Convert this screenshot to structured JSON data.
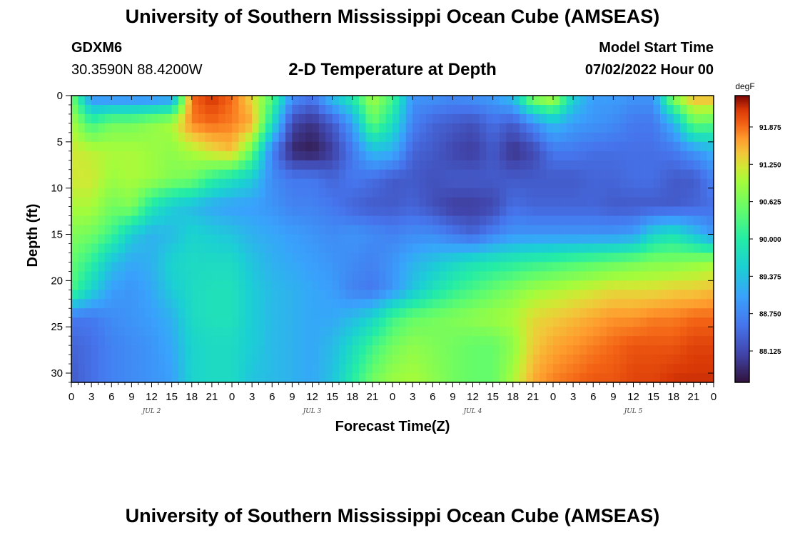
{
  "title": "University of Southern Mississippi Ocean Cube (AMSEAS)",
  "station": {
    "id": "GDXM6",
    "coords": "30.3590N  88.4200W"
  },
  "model_start": {
    "label": "Model Start Time",
    "value": "07/02/2022 Hour 00"
  },
  "plot_title": "2-D Temperature at Depth",
  "footer_title": "University of Southern Mississippi Ocean Cube (AMSEAS)",
  "colors": {
    "background": "#ffffff",
    "axis": "#000000"
  },
  "chart_data": {
    "type": "heatmap",
    "title": "2-D Temperature at Depth",
    "xlabel": "Forecast Time(Z)",
    "ylabel": "Depth (ft)",
    "units": "degF",
    "x_hours_range": [
      0,
      96
    ],
    "y_depth_range": [
      0,
      31
    ],
    "y_ticks": [
      0,
      5,
      10,
      15,
      20,
      25,
      30
    ],
    "x_tick_labels": [
      "0",
      "3",
      "6",
      "9",
      "12",
      "15",
      "18",
      "21",
      "0",
      "3",
      "6",
      "9",
      "12",
      "15",
      "18",
      "21",
      "0",
      "3",
      "6",
      "9",
      "12",
      "15",
      "18",
      "21",
      "0",
      "3",
      "6",
      "9",
      "12",
      "15",
      "18",
      "21",
      "0"
    ],
    "day_labels": [
      {
        "label": "JUL 2",
        "hour": 12
      },
      {
        "label": "JUL 3",
        "hour": 36
      },
      {
        "label": "JUL 4",
        "hour": 60
      },
      {
        "label": "JUL 5",
        "hour": 84
      }
    ],
    "colorbar": {
      "min": 87.6,
      "max": 92.4,
      "ticks": [
        "91.875",
        "91.250",
        "90.625",
        "90.000",
        "89.375",
        "88.750",
        "88.125"
      ],
      "tick_values": [
        91.875,
        91.25,
        90.625,
        90.0,
        89.375,
        88.75,
        88.125
      ]
    },
    "grid_hours": [
      0,
      3,
      6,
      9,
      12,
      15,
      18,
      21,
      24,
      27,
      30,
      33,
      36,
      39,
      42,
      45,
      48,
      51,
      54,
      57,
      60,
      63,
      66,
      69,
      72,
      75,
      78,
      81,
      84,
      87,
      90,
      93,
      96
    ],
    "grid_depths": [
      0,
      3,
      6,
      9,
      12,
      15,
      18,
      21,
      24,
      27,
      31
    ],
    "values_degF": [
      [
        90.6,
        88.8,
        88.7,
        88.7,
        88.7,
        88.8,
        91.9,
        92.2,
        91.9,
        91.3,
        90.4,
        88.9,
        88.6,
        89.4,
        90.0,
        91.0,
        90.3,
        88.9,
        88.9,
        88.8,
        88.9,
        89.0,
        89.4,
        90.9,
        91.2,
        89.6,
        89.0,
        89.0,
        88.9,
        88.9,
        90.9,
        91.6,
        91.6
      ],
      [
        91.0,
        90.2,
        90.6,
        90.6,
        90.8,
        91.0,
        91.8,
        91.9,
        91.8,
        91.6,
        89.8,
        88.1,
        87.9,
        88.3,
        89.0,
        90.5,
        89.8,
        88.7,
        88.4,
        88.3,
        88.2,
        88.5,
        88.3,
        88.8,
        89.3,
        89.0,
        88.9,
        88.8,
        88.6,
        88.6,
        89.2,
        90.5,
        90.4
      ],
      [
        91.2,
        91.1,
        91.0,
        91.0,
        90.9,
        90.8,
        91.0,
        91.3,
        91.5,
        90.5,
        88.7,
        87.8,
        87.7,
        88.0,
        88.6,
        89.3,
        89.2,
        88.4,
        88.3,
        88.1,
        88.0,
        88.3,
        87.9,
        88.1,
        88.6,
        88.6,
        88.5,
        88.5,
        88.5,
        88.5,
        88.6,
        88.9,
        89.2
      ],
      [
        91.2,
        91.2,
        90.9,
        91.0,
        90.9,
        90.7,
        90.6,
        90.1,
        89.8,
        89.5,
        88.8,
        88.6,
        88.6,
        88.4,
        88.6,
        88.5,
        88.3,
        88.3,
        88.2,
        88.3,
        88.3,
        88.3,
        88.3,
        88.3,
        88.3,
        88.3,
        88.4,
        88.4,
        88.5,
        88.5,
        88.3,
        88.3,
        88.7
      ],
      [
        91.0,
        91.0,
        90.6,
        90.7,
        89.9,
        89.5,
        89.3,
        89.1,
        89.0,
        89.0,
        88.9,
        88.7,
        88.7,
        88.6,
        88.4,
        88.3,
        88.3,
        88.4,
        88.2,
        88.0,
        88.0,
        88.1,
        88.5,
        88.4,
        88.4,
        88.4,
        88.4,
        88.3,
        88.3,
        88.3,
        88.3,
        88.4,
        88.5
      ],
      [
        90.7,
        90.6,
        90.2,
        89.5,
        89.2,
        89.3,
        89.6,
        89.5,
        89.4,
        89.2,
        89.1,
        89.0,
        88.9,
        88.8,
        88.9,
        88.8,
        88.7,
        88.8,
        88.8,
        88.6,
        88.4,
        88.7,
        88.9,
        88.9,
        88.9,
        88.9,
        88.9,
        88.9,
        89.0,
        89.6,
        89.8,
        89.4,
        88.9
      ],
      [
        90.5,
        90.1,
        89.4,
        89.1,
        89.2,
        89.6,
        89.7,
        89.7,
        89.7,
        89.4,
        89.2,
        89.1,
        89.0,
        88.9,
        88.8,
        88.7,
        88.9,
        89.2,
        89.4,
        89.6,
        89.8,
        89.9,
        90.0,
        90.1,
        90.2,
        90.3,
        90.4,
        90.5,
        90.6,
        90.7,
        90.7,
        90.8,
        90.9
      ],
      [
        90.3,
        89.6,
        89.0,
        88.9,
        89.1,
        89.5,
        89.7,
        89.8,
        89.8,
        89.5,
        89.3,
        89.2,
        89.1,
        89.0,
        88.7,
        88.6,
        88.9,
        89.4,
        89.8,
        90.1,
        90.3,
        90.5,
        90.7,
        90.9,
        91.0,
        91.1,
        91.2,
        91.3,
        91.3,
        91.3,
        91.4,
        91.4,
        91.5
      ],
      [
        88.6,
        88.6,
        88.8,
        88.9,
        89.0,
        89.2,
        89.7,
        89.8,
        89.8,
        89.5,
        89.3,
        89.2,
        89.1,
        89.1,
        89.3,
        89.6,
        90.2,
        90.5,
        90.6,
        90.7,
        90.8,
        90.9,
        91.0,
        91.3,
        91.4,
        91.5,
        91.6,
        91.7,
        91.7,
        91.8,
        91.8,
        91.9,
        91.9
      ],
      [
        88.4,
        88.5,
        88.7,
        88.8,
        88.9,
        89.1,
        89.6,
        89.7,
        89.7,
        89.5,
        89.3,
        89.2,
        89.1,
        89.3,
        89.7,
        90.2,
        90.6,
        90.8,
        90.7,
        90.6,
        90.5,
        90.5,
        90.8,
        91.4,
        91.6,
        91.7,
        91.8,
        91.9,
        92.0,
        92.0,
        92.0,
        92.1,
        92.1
      ],
      [
        88.3,
        88.5,
        88.7,
        88.8,
        88.9,
        89.0,
        89.6,
        89.7,
        89.7,
        89.4,
        89.3,
        89.2,
        89.1,
        89.4,
        90.0,
        90.6,
        90.9,
        91.0,
        90.8,
        90.6,
        90.5,
        90.5,
        91.0,
        91.6,
        91.8,
        91.9,
        92.0,
        92.0,
        92.1,
        92.1,
        92.2,
        92.2,
        92.2
      ]
    ]
  }
}
